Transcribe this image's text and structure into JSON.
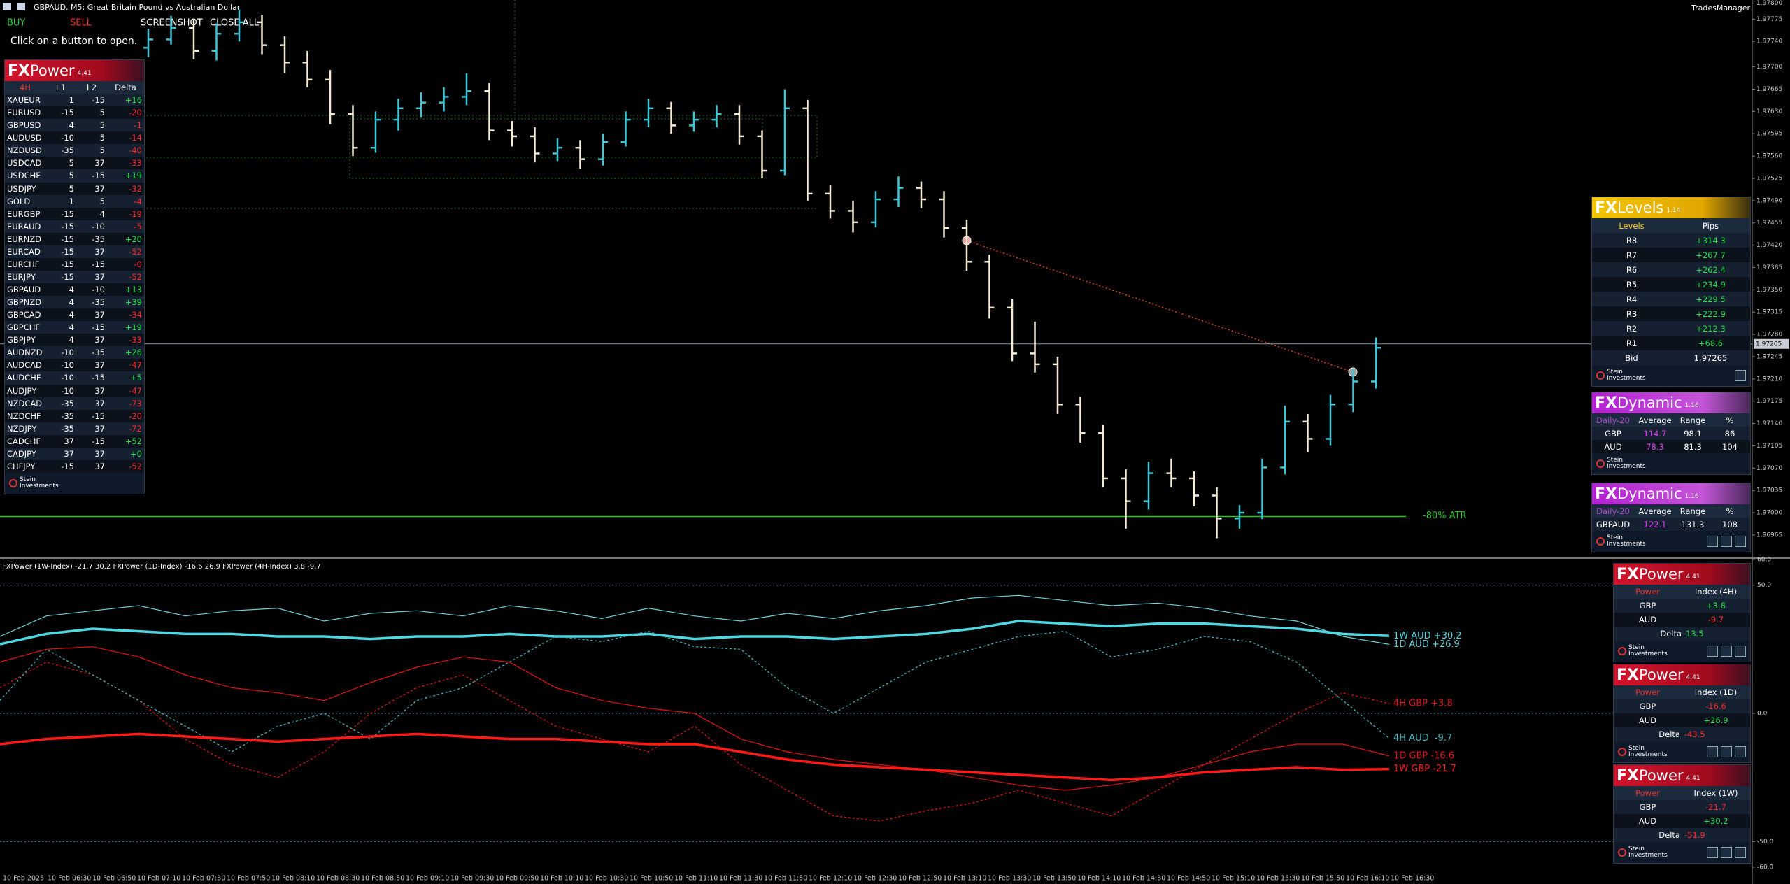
{
  "header": {
    "symbol": "GBPAUD, M5:  Great Britain Pound vs Australian Dollar",
    "account": "TradesManager"
  },
  "buttons": [
    "BUY",
    "SELL",
    "SCREENSHOT",
    "CLOSE ALL"
  ],
  "hint": "Click on a button to open.",
  "price_chart": {
    "type": "ohlc",
    "up_color": "#3cc6d6",
    "down_color": "#f4ecd2",
    "ylim": [
      1.96932,
      1.97805
    ],
    "yticks": [
      {
        "value": 1.978,
        "label": "1.97800"
      },
      {
        "value": 1.97775,
        "label": "1.97775"
      },
      {
        "value": 1.9774,
        "label": "1.97740"
      },
      {
        "value": 1.977,
        "label": "1.97700"
      },
      {
        "value": 1.97665,
        "label": "1.97665"
      },
      {
        "value": 1.9763,
        "label": "1.97630"
      },
      {
        "value": 1.97595,
        "label": "1.97595"
      },
      {
        "value": 1.9756,
        "label": "1.97560"
      },
      {
        "value": 1.97525,
        "label": "1.97525"
      },
      {
        "value": 1.9749,
        "label": "1.97490"
      },
      {
        "value": 1.97455,
        "label": "1.97455"
      },
      {
        "value": 1.9742,
        "label": "1.97420"
      },
      {
        "value": 1.97385,
        "label": "1.97385"
      },
      {
        "value": 1.9735,
        "label": "1.97350"
      },
      {
        "value": 1.97315,
        "label": "1.97315"
      },
      {
        "value": 1.9728,
        "label": "1.97280"
      },
      {
        "value": 1.97245,
        "label": "1.97245"
      },
      {
        "value": 1.9721,
        "label": "1.97210"
      },
      {
        "value": 1.97175,
        "label": "1.97175"
      },
      {
        "value": 1.9714,
        "label": "1.97140"
      },
      {
        "value": 1.97105,
        "label": "1.97105"
      },
      {
        "value": 1.9707,
        "label": "1.97070"
      },
      {
        "value": 1.97035,
        "label": "1.97035"
      },
      {
        "value": 1.97,
        "label": "1.97000"
      },
      {
        "value": 1.96965,
        "label": "1.96965"
      }
    ],
    "current_price": 1.97265,
    "atr_line": {
      "value": 1.96994,
      "label": "-80% ATR"
    },
    "candles": [
      [
        1.9773,
        1.9776,
        1.97715,
        1.97743
      ],
      [
        1.97743,
        1.9778,
        1.97735,
        1.97761
      ],
      [
        1.97761,
        1.97775,
        1.97712,
        1.97725
      ],
      [
        1.97725,
        1.97768,
        1.9771,
        1.97752
      ],
      [
        1.97752,
        1.9779,
        1.9774,
        1.9777
      ],
      [
        1.9777,
        1.97782,
        1.9772,
        1.97734
      ],
      [
        1.97734,
        1.97748,
        1.9769,
        1.97707
      ],
      [
        1.97707,
        1.97725,
        1.97668,
        1.9768
      ],
      [
        1.9768,
        1.97695,
        1.9761,
        1.97626
      ],
      [
        1.97626,
        1.9764,
        1.9756,
        1.97573
      ],
      [
        1.97573,
        1.9763,
        1.97565,
        1.97617
      ],
      [
        1.97617,
        1.9765,
        1.976,
        1.97635
      ],
      [
        1.97635,
        1.9766,
        1.9762,
        1.97644
      ],
      [
        1.97644,
        1.97668,
        1.9763,
        1.97653
      ],
      [
        1.97653,
        1.9769,
        1.9764,
        1.97662
      ],
      [
        1.97662,
        1.97675,
        1.97585,
        1.976
      ],
      [
        1.976,
        1.97615,
        1.97575,
        1.97591
      ],
      [
        1.97591,
        1.97605,
        1.9755,
        1.97564
      ],
      [
        1.97564,
        1.97588,
        1.97552,
        1.97573
      ],
      [
        1.97573,
        1.97585,
        1.9754,
        1.97555
      ],
      [
        1.97555,
        1.97595,
        1.97545,
        1.97582
      ],
      [
        1.97582,
        1.9763,
        1.97575,
        1.97617
      ],
      [
        1.97617,
        1.9765,
        1.97605,
        1.97635
      ],
      [
        1.97635,
        1.97645,
        1.97595,
        1.97608
      ],
      [
        1.97608,
        1.9763,
        1.97598,
        1.97617
      ],
      [
        1.97617,
        1.9764,
        1.97605,
        1.97626
      ],
      [
        1.97626,
        1.9764,
        1.97578,
        1.97591
      ],
      [
        1.97591,
        1.976,
        1.97525,
        1.97537
      ],
      [
        1.97537,
        1.97665,
        1.9753,
        1.97635
      ],
      [
        1.97635,
        1.97648,
        1.9749,
        1.97501
      ],
      [
        1.97501,
        1.97515,
        1.97462,
        1.97474
      ],
      [
        1.97474,
        1.9749,
        1.9744,
        1.97456
      ],
      [
        1.97456,
        1.97505,
        1.97448,
        1.97492
      ],
      [
        1.97492,
        1.97528,
        1.9748,
        1.9751
      ],
      [
        1.9751,
        1.9752,
        1.97478,
        1.97492
      ],
      [
        1.97492,
        1.97505,
        1.97432,
        1.97447
      ],
      [
        1.97447,
        1.9746,
        1.9738,
        1.97394
      ],
      [
        1.97394,
        1.97405,
        1.97305,
        1.97322
      ],
      [
        1.97322,
        1.97335,
        1.97238,
        1.9725
      ],
      [
        1.9725,
        1.973,
        1.9722,
        1.97233
      ],
      [
        1.97233,
        1.97245,
        1.97155,
        1.9717
      ],
      [
        1.9717,
        1.97182,
        1.9711,
        1.97125
      ],
      [
        1.97125,
        1.97138,
        1.9704,
        1.97054
      ],
      [
        1.97054,
        1.97068,
        1.96975,
        1.97018
      ],
      [
        1.97018,
        1.9708,
        1.97005,
        1.97062
      ],
      [
        1.97062,
        1.97085,
        1.9704,
        1.97054
      ],
      [
        1.97054,
        1.97065,
        1.9701,
        1.97027
      ],
      [
        1.97027,
        1.9704,
        1.9696,
        1.96991
      ],
      [
        1.96991,
        1.97012,
        1.96975,
        1.97
      ],
      [
        1.97,
        1.97085,
        1.9699,
        1.97071
      ],
      [
        1.97071,
        1.97168,
        1.9706,
        1.97143
      ],
      [
        1.97143,
        1.97155,
        1.97095,
        1.97116
      ],
      [
        1.97116,
        1.97185,
        1.97105,
        1.9717
      ],
      [
        1.9717,
        1.97225,
        1.97158,
        1.97206
      ],
      [
        1.97206,
        1.97275,
        1.97195,
        1.97259
      ]
    ]
  },
  "indicator": {
    "header": "FXPower (1W-Index) -21.7 30.2 FXPower (1D-Index) -16.6 26.9 FXPower (4H-Index) 3.8 -9.7",
    "ylim": [
      -60,
      60
    ],
    "yticks": [
      {
        "value": 60,
        "label": "60.0"
      },
      {
        "value": 50,
        "label": "50.0"
      },
      {
        "value": 0,
        "label": "0.0"
      },
      {
        "value": -50,
        "label": "-50.0"
      },
      {
        "value": -60,
        "label": "-60.0"
      }
    ],
    "levels": [
      50,
      0,
      -50
    ],
    "series": [
      {
        "label": "1W AUD +30.2",
        "color": "#4fd8e2",
        "style": "thick",
        "values": [
          27,
          31,
          33,
          32,
          31,
          31,
          30,
          30,
          29,
          30,
          30,
          31,
          30,
          30,
          31,
          29,
          30,
          30,
          29,
          30,
          31,
          33,
          36,
          35,
          34,
          35,
          35,
          34,
          33,
          31,
          30.2
        ]
      },
      {
        "label": "1D AUD +26.9",
        "color": "#6fd0d6",
        "style": "thin",
        "values": [
          30,
          38,
          40,
          42,
          38,
          40,
          41,
          36,
          39,
          40,
          38,
          42,
          40,
          37,
          41,
          38,
          36,
          39,
          37,
          40,
          42,
          45,
          46,
          44,
          42,
          43,
          41,
          38,
          36,
          30,
          26.9
        ]
      },
      {
        "label": "4H GBP +3.8",
        "color": "#e01414",
        "style": "dotted",
        "values": [
          10,
          20,
          15,
          5,
          -10,
          -20,
          -25,
          -15,
          0,
          10,
          15,
          5,
          -5,
          -10,
          -15,
          -5,
          -20,
          -30,
          -40,
          -42,
          -38,
          -35,
          -30,
          -35,
          -40,
          -30,
          -20,
          -10,
          0,
          8,
          3.8
        ]
      },
      {
        "label": "4H AUD  -9.7",
        "color": "#3fb9bd",
        "style": "dotted",
        "values": [
          5,
          25,
          15,
          5,
          -5,
          -15,
          -5,
          0,
          -10,
          5,
          10,
          20,
          30,
          28,
          32,
          26,
          25,
          10,
          0,
          10,
          20,
          25,
          30,
          32,
          22,
          25,
          30,
          28,
          20,
          5,
          -9.7
        ]
      },
      {
        "label": "1D GBP -16.6",
        "color": "#e81010",
        "style": "thin",
        "values": [
          20,
          25,
          26,
          22,
          15,
          10,
          8,
          5,
          12,
          18,
          22,
          20,
          10,
          5,
          2,
          0,
          -10,
          -15,
          -18,
          -20,
          -22,
          -25,
          -28,
          -30,
          -28,
          -25,
          -20,
          -15,
          -12,
          -12,
          -16.6
        ]
      },
      {
        "label": "1W GBP -21.7",
        "color": "#ff1a1a",
        "style": "thick",
        "values": [
          -12,
          -10,
          -9,
          -8,
          -9,
          -10,
          -11,
          -10,
          -9,
          -8,
          -9,
          -10,
          -10,
          -11,
          -12,
          -12,
          -15,
          -18,
          -20,
          -21,
          -22,
          -23,
          -24,
          -25,
          -26,
          -25,
          -23,
          -22,
          -21,
          -22,
          -21.7
        ]
      }
    ]
  },
  "time_axis": [
    "10 Feb 2025",
    "10 Feb 06:30",
    "10 Feb 06:50",
    "10 Feb 07:10",
    "10 Feb 07:30",
    "10 Feb 07:50",
    "10 Feb 08:10",
    "10 Feb 08:30",
    "10 Feb 08:50",
    "10 Feb 09:10",
    "10 Feb 09:30",
    "10 Feb 09:50",
    "10 Feb 10:10",
    "10 Feb 10:30",
    "10 Feb 10:50",
    "10 Feb 11:10",
    "10 Feb 11:30",
    "10 Feb 11:50",
    "10 Feb 12:10",
    "10 Feb 12:30",
    "10 Feb 12:50",
    "10 Feb 13:10",
    "10 Feb 13:30",
    "10 Feb 13:50",
    "10 Feb 14:10",
    "10 Feb 14:30",
    "10 Feb 14:50",
    "10 Feb 15:10",
    "10 Feb 15:30",
    "10 Feb 15:50",
    "10 Feb 16:10",
    "10 Feb 16:30"
  ],
  "vendor": [
    "Stein",
    "Investments"
  ],
  "fxpower_left": {
    "brand": "FX",
    "name": "Power",
    "version": "4.41",
    "columns": [
      "4H",
      "I 1",
      "I 2",
      "Delta"
    ],
    "rows": [
      [
        "XAUEUR",
        "1",
        "-15",
        "+16"
      ],
      [
        "EURUSD",
        "-15",
        "5",
        "-20"
      ],
      [
        "GBPUSD",
        "4",
        "5",
        "-1"
      ],
      [
        "AUDUSD",
        "-10",
        "5",
        "-14"
      ],
      [
        "NZDUSD",
        "-35",
        "5",
        "-40"
      ],
      [
        "USDCAD",
        "5",
        "37",
        "-33"
      ],
      [
        "USDCHF",
        "5",
        "-15",
        "+19"
      ],
      [
        "USDJPY",
        "5",
        "37",
        "-32"
      ],
      [
        "GOLD",
        "1",
        "5",
        "-4"
      ],
      [
        "EURGBP",
        "-15",
        "4",
        "-19"
      ],
      [
        "EURAUD",
        "-15",
        "-10",
        "-5"
      ],
      [
        "EURNZD",
        "-15",
        "-35",
        "+20"
      ],
      [
        "EURCAD",
        "-15",
        "37",
        "-52"
      ],
      [
        "EURCHF",
        "-15",
        "-15",
        "-0"
      ],
      [
        "EURJPY",
        "-15",
        "37",
        "-52"
      ],
      [
        "GBPAUD",
        "4",
        "-10",
        "+13"
      ],
      [
        "GBPNZD",
        "4",
        "-35",
        "+39"
      ],
      [
        "GBPCAD",
        "4",
        "37",
        "-34"
      ],
      [
        "GBPCHF",
        "4",
        "-15",
        "+19"
      ],
      [
        "GBPJPY",
        "4",
        "37",
        "-33"
      ],
      [
        "AUDNZD",
        "-10",
        "-35",
        "+26"
      ],
      [
        "AUDCAD",
        "-10",
        "37",
        "-47"
      ],
      [
        "AUDCHF",
        "-10",
        "-15",
        "+5"
      ],
      [
        "AUDJPY",
        "-10",
        "37",
        "-47"
      ],
      [
        "NZDCAD",
        "-35",
        "37",
        "-73"
      ],
      [
        "NZDCHF",
        "-35",
        "-15",
        "-20"
      ],
      [
        "NZDJPY",
        "-35",
        "37",
        "-72"
      ],
      [
        "CADCHF",
        "37",
        "-15",
        "+52"
      ],
      [
        "CADJPY",
        "37",
        "37",
        "+0"
      ],
      [
        "CHFJPY",
        "-15",
        "37",
        "-52"
      ]
    ]
  },
  "fxlevels": {
    "brand": "FX",
    "name": "Levels",
    "version": "1.14",
    "columns": [
      "Levels",
      "Pips"
    ],
    "rows": [
      [
        "R8",
        "+314.3"
      ],
      [
        "R7",
        "+267.7"
      ],
      [
        "R6",
        "+262.4"
      ],
      [
        "R5",
        "+234.9"
      ],
      [
        "R4",
        "+229.5"
      ],
      [
        "R3",
        "+222.9"
      ],
      [
        "R2",
        "+212.3"
      ],
      [
        "R1",
        "+68.6"
      ],
      [
        "Bid",
        "1.97265"
      ]
    ]
  },
  "fxdynamic": [
    {
      "brand": "FX",
      "name": "Dynamic",
      "version": "1.16",
      "columns": [
        "Daily-20",
        "Average",
        "Range",
        "%"
      ],
      "rows": [
        [
          "GBP",
          "114.7",
          "98.1",
          "86"
        ],
        [
          "AUD",
          "78.3",
          "81.3",
          "104"
        ]
      ]
    },
    {
      "brand": "FX",
      "name": "Dynamic",
      "version": "1.16",
      "columns": [
        "Daily-20",
        "Average",
        "Range",
        "%"
      ],
      "rows": [
        [
          "GBPAUD",
          "122.1",
          "131.3",
          "108"
        ]
      ]
    }
  ],
  "fxpower_right": [
    {
      "brand": "FX",
      "name": "Power",
      "version": "4.41",
      "columns": [
        "Power",
        "Index (4H)"
      ],
      "rows": [
        [
          "GBP",
          "+3.8"
        ],
        [
          "AUD",
          "-9.7"
        ]
      ],
      "delta_label": "Delta",
      "delta": "13.5"
    },
    {
      "brand": "FX",
      "name": "Power",
      "version": "4.41",
      "columns": [
        "Power",
        "Index (1D)"
      ],
      "rows": [
        [
          "GBP",
          "-16.6"
        ],
        [
          "AUD",
          "+26.9"
        ]
      ],
      "delta_label": "Delta",
      "delta": "-43.5"
    },
    {
      "brand": "FX",
      "name": "Power",
      "version": "4.41",
      "columns": [
        "Power",
        "Index (1W)"
      ],
      "rows": [
        [
          "GBP",
          "-21.7"
        ],
        [
          "AUD",
          "+30.2"
        ]
      ],
      "delta_label": "Delta",
      "delta": "-51.9"
    }
  ]
}
